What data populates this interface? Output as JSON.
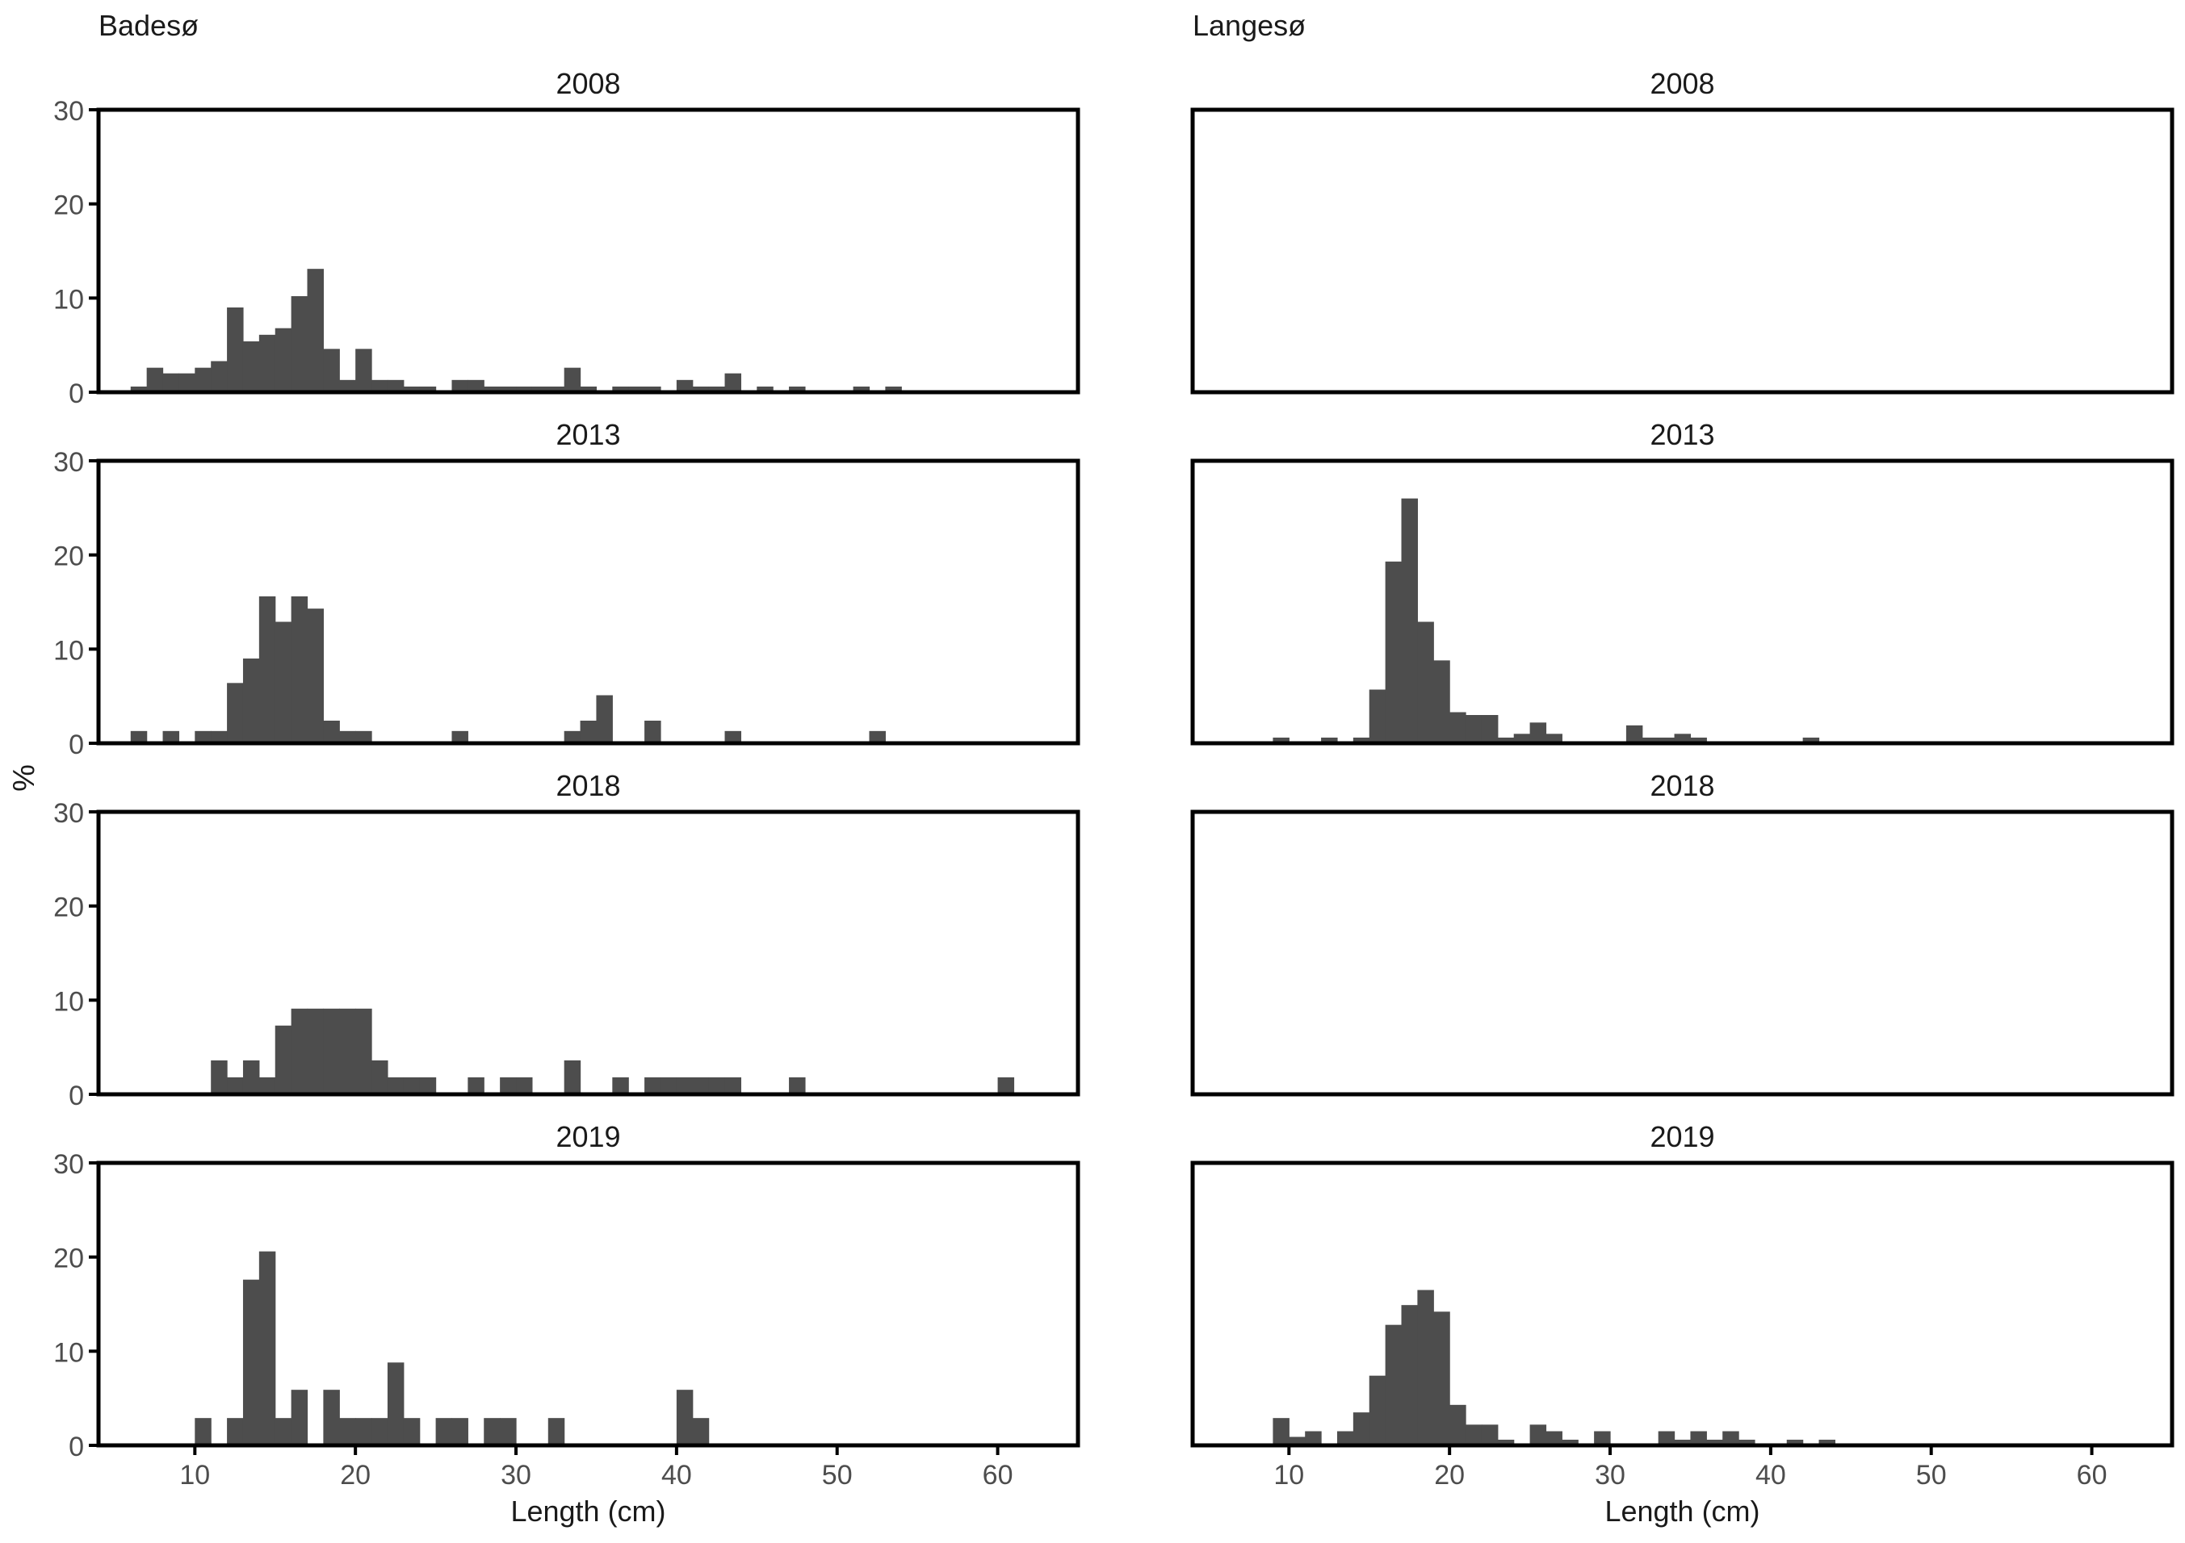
{
  "figure": {
    "y_axis_label": "%",
    "x_axis_label": "Length (cm)"
  },
  "colors": {
    "bar": "#4d4d4d",
    "frame": "#000000",
    "tick_text": "#4d4d4d",
    "title_text": "#1a1a1a"
  },
  "chart_data": [
    {
      "type": "bar",
      "lake": "Badesø",
      "year": "2008",
      "bin_width": 1,
      "xlim": [
        4,
        65
      ],
      "ylim": [
        0,
        30
      ],
      "xticks": [
        10,
        20,
        30,
        40,
        50,
        60
      ],
      "yticks": [
        0,
        10,
        20,
        30
      ],
      "xlabel": "Length (cm)",
      "ylabel": "%",
      "bins": [
        [
          6.5,
          0.6
        ],
        [
          7.5,
          2.6
        ],
        [
          8.5,
          2.0
        ],
        [
          9.5,
          2.0
        ],
        [
          10.5,
          2.6
        ],
        [
          11.5,
          3.3
        ],
        [
          12.5,
          9.0
        ],
        [
          13.5,
          5.4
        ],
        [
          14.5,
          6.1
        ],
        [
          15.5,
          6.8
        ],
        [
          16.5,
          10.2
        ],
        [
          17.5,
          13.1
        ],
        [
          18.5,
          4.6
        ],
        [
          19.5,
          1.3
        ],
        [
          20.5,
          4.6
        ],
        [
          21.5,
          1.3
        ],
        [
          22.5,
          1.3
        ],
        [
          23.5,
          0.6
        ],
        [
          24.5,
          0.6
        ],
        [
          26.5,
          1.3
        ],
        [
          27.5,
          1.3
        ],
        [
          28.5,
          0.6
        ],
        [
          29.5,
          0.6
        ],
        [
          30.5,
          0.6
        ],
        [
          31.5,
          0.6
        ],
        [
          32.5,
          0.6
        ],
        [
          33.5,
          2.6
        ],
        [
          34.5,
          0.6
        ],
        [
          36.5,
          0.6
        ],
        [
          37.5,
          0.6
        ],
        [
          38.5,
          0.6
        ],
        [
          40.5,
          1.3
        ],
        [
          41.5,
          0.6
        ],
        [
          42.5,
          0.6
        ],
        [
          43.5,
          2.0
        ],
        [
          45.5,
          0.6
        ],
        [
          47.5,
          0.6
        ],
        [
          51.5,
          0.6
        ],
        [
          53.5,
          0.6
        ]
      ]
    },
    {
      "type": "bar",
      "lake": "Badesø",
      "year": "2013",
      "bin_width": 1,
      "xlim": [
        4,
        65
      ],
      "ylim": [
        0,
        30
      ],
      "xticks": [
        10,
        20,
        30,
        40,
        50,
        60
      ],
      "yticks": [
        0,
        10,
        20,
        30
      ],
      "xlabel": "Length (cm)",
      "ylabel": "%",
      "bins": [
        [
          6.5,
          1.3
        ],
        [
          8.5,
          1.3
        ],
        [
          10.5,
          1.3
        ],
        [
          11.5,
          1.3
        ],
        [
          12.5,
          6.4
        ],
        [
          13.5,
          9.0
        ],
        [
          14.5,
          15.6
        ],
        [
          15.5,
          12.9
        ],
        [
          16.5,
          15.6
        ],
        [
          17.5,
          14.3
        ],
        [
          18.5,
          2.4
        ],
        [
          19.5,
          1.3
        ],
        [
          20.5,
          1.3
        ],
        [
          26.5,
          1.3
        ],
        [
          33.5,
          1.3
        ],
        [
          34.5,
          2.4
        ],
        [
          35.5,
          5.1
        ],
        [
          38.5,
          2.4
        ],
        [
          43.5,
          1.3
        ],
        [
          52.5,
          1.3
        ]
      ]
    },
    {
      "type": "bar",
      "lake": "Badesø",
      "year": "2018",
      "bin_width": 1,
      "xlim": [
        4,
        65
      ],
      "ylim": [
        0,
        30
      ],
      "xticks": [
        10,
        20,
        30,
        40,
        50,
        60
      ],
      "yticks": [
        0,
        10,
        20,
        30
      ],
      "xlabel": "Length (cm)",
      "ylabel": "%",
      "bins": [
        [
          11.5,
          3.6
        ],
        [
          12.5,
          1.8
        ],
        [
          13.5,
          3.6
        ],
        [
          14.5,
          1.8
        ],
        [
          15.5,
          7.3
        ],
        [
          16.5,
          9.1
        ],
        [
          17.5,
          9.1
        ],
        [
          18.5,
          9.1
        ],
        [
          19.5,
          9.1
        ],
        [
          20.5,
          9.1
        ],
        [
          21.5,
          3.6
        ],
        [
          22.5,
          1.8
        ],
        [
          23.5,
          1.8
        ],
        [
          24.5,
          1.8
        ],
        [
          27.5,
          1.8
        ],
        [
          29.5,
          1.8
        ],
        [
          30.5,
          1.8
        ],
        [
          33.5,
          3.6
        ],
        [
          36.5,
          1.8
        ],
        [
          38.5,
          1.8
        ],
        [
          39.5,
          1.8
        ],
        [
          40.5,
          1.8
        ],
        [
          41.5,
          1.8
        ],
        [
          42.5,
          1.8
        ],
        [
          43.5,
          1.8
        ],
        [
          47.5,
          1.8
        ],
        [
          60.5,
          1.8
        ]
      ]
    },
    {
      "type": "bar",
      "lake": "Badesø",
      "year": "2019",
      "bin_width": 1,
      "xlim": [
        4,
        65
      ],
      "ylim": [
        0,
        30
      ],
      "xticks": [
        10,
        20,
        30,
        40,
        50,
        60
      ],
      "yticks": [
        0,
        10,
        20,
        30
      ],
      "xlabel": "Length (cm)",
      "ylabel": "%",
      "bins": [
        [
          10.5,
          2.9
        ],
        [
          12.5,
          2.9
        ],
        [
          13.5,
          17.6
        ],
        [
          14.5,
          20.6
        ],
        [
          15.5,
          2.9
        ],
        [
          16.5,
          5.9
        ],
        [
          18.5,
          5.9
        ],
        [
          19.5,
          2.9
        ],
        [
          20.5,
          2.9
        ],
        [
          21.5,
          2.9
        ],
        [
          22.5,
          8.8
        ],
        [
          23.5,
          2.9
        ],
        [
          25.5,
          2.9
        ],
        [
          26.5,
          2.9
        ],
        [
          28.5,
          2.9
        ],
        [
          29.5,
          2.9
        ],
        [
          32.5,
          2.9
        ],
        [
          40.5,
          5.9
        ],
        [
          41.5,
          2.9
        ]
      ]
    },
    {
      "type": "bar",
      "lake": "Langesø",
      "year": "2008",
      "bin_width": 1,
      "xlim": [
        4,
        65
      ],
      "ylim": [
        0,
        30
      ],
      "xticks": [
        10,
        20,
        30,
        40,
        50,
        60
      ],
      "yticks": [
        0,
        10,
        20,
        30
      ],
      "xlabel": "Length (cm)",
      "ylabel": "%",
      "bins": []
    },
    {
      "type": "bar",
      "lake": "Langesø",
      "year": "2013",
      "bin_width": 1,
      "xlim": [
        4,
        65
      ],
      "ylim": [
        0,
        30
      ],
      "xticks": [
        10,
        20,
        30,
        40,
        50,
        60
      ],
      "yticks": [
        0,
        10,
        20,
        30
      ],
      "xlabel": "Length (cm)",
      "ylabel": "%",
      "bins": [
        [
          9.5,
          0.6
        ],
        [
          12.5,
          0.6
        ],
        [
          14.5,
          0.6
        ],
        [
          15.5,
          5.7
        ],
        [
          16.5,
          19.3
        ],
        [
          17.5,
          26.0
        ],
        [
          18.5,
          12.9
        ],
        [
          19.5,
          8.8
        ],
        [
          20.5,
          3.3
        ],
        [
          21.5,
          3.0
        ],
        [
          22.5,
          3.0
        ],
        [
          23.5,
          0.6
        ],
        [
          24.5,
          1.0
        ],
        [
          25.5,
          2.2
        ],
        [
          26.5,
          1.0
        ],
        [
          31.5,
          1.9
        ],
        [
          32.5,
          0.6
        ],
        [
          33.5,
          0.6
        ],
        [
          34.5,
          1.0
        ],
        [
          35.5,
          0.6
        ],
        [
          42.5,
          0.6
        ]
      ]
    },
    {
      "type": "bar",
      "lake": "Langesø",
      "year": "2018",
      "bin_width": 1,
      "xlim": [
        4,
        65
      ],
      "ylim": [
        0,
        30
      ],
      "xticks": [
        10,
        20,
        30,
        40,
        50,
        60
      ],
      "yticks": [
        0,
        10,
        20,
        30
      ],
      "xlabel": "Length (cm)",
      "ylabel": "%",
      "bins": []
    },
    {
      "type": "bar",
      "lake": "Langesø",
      "year": "2019",
      "bin_width": 1,
      "xlim": [
        4,
        65
      ],
      "ylim": [
        0,
        30
      ],
      "xticks": [
        10,
        20,
        30,
        40,
        50,
        60
      ],
      "yticks": [
        0,
        10,
        20,
        30
      ],
      "xlabel": "Length (cm)",
      "ylabel": "%",
      "bins": [
        [
          9.5,
          2.9
        ],
        [
          10.5,
          0.9
        ],
        [
          11.5,
          1.5
        ],
        [
          13.5,
          1.5
        ],
        [
          14.5,
          3.5
        ],
        [
          15.5,
          7.4
        ],
        [
          16.5,
          12.8
        ],
        [
          17.5,
          14.9
        ],
        [
          18.5,
          16.5
        ],
        [
          19.5,
          14.2
        ],
        [
          20.5,
          4.3
        ],
        [
          21.5,
          2.2
        ],
        [
          22.5,
          2.2
        ],
        [
          23.5,
          0.6
        ],
        [
          25.5,
          2.2
        ],
        [
          26.5,
          1.5
        ],
        [
          27.5,
          0.6
        ],
        [
          29.5,
          1.5
        ],
        [
          33.5,
          1.5
        ],
        [
          34.5,
          0.6
        ],
        [
          35.5,
          1.5
        ],
        [
          36.5,
          0.6
        ],
        [
          37.5,
          1.5
        ],
        [
          38.5,
          0.6
        ],
        [
          41.5,
          0.6
        ],
        [
          43.5,
          0.6
        ]
      ]
    }
  ]
}
